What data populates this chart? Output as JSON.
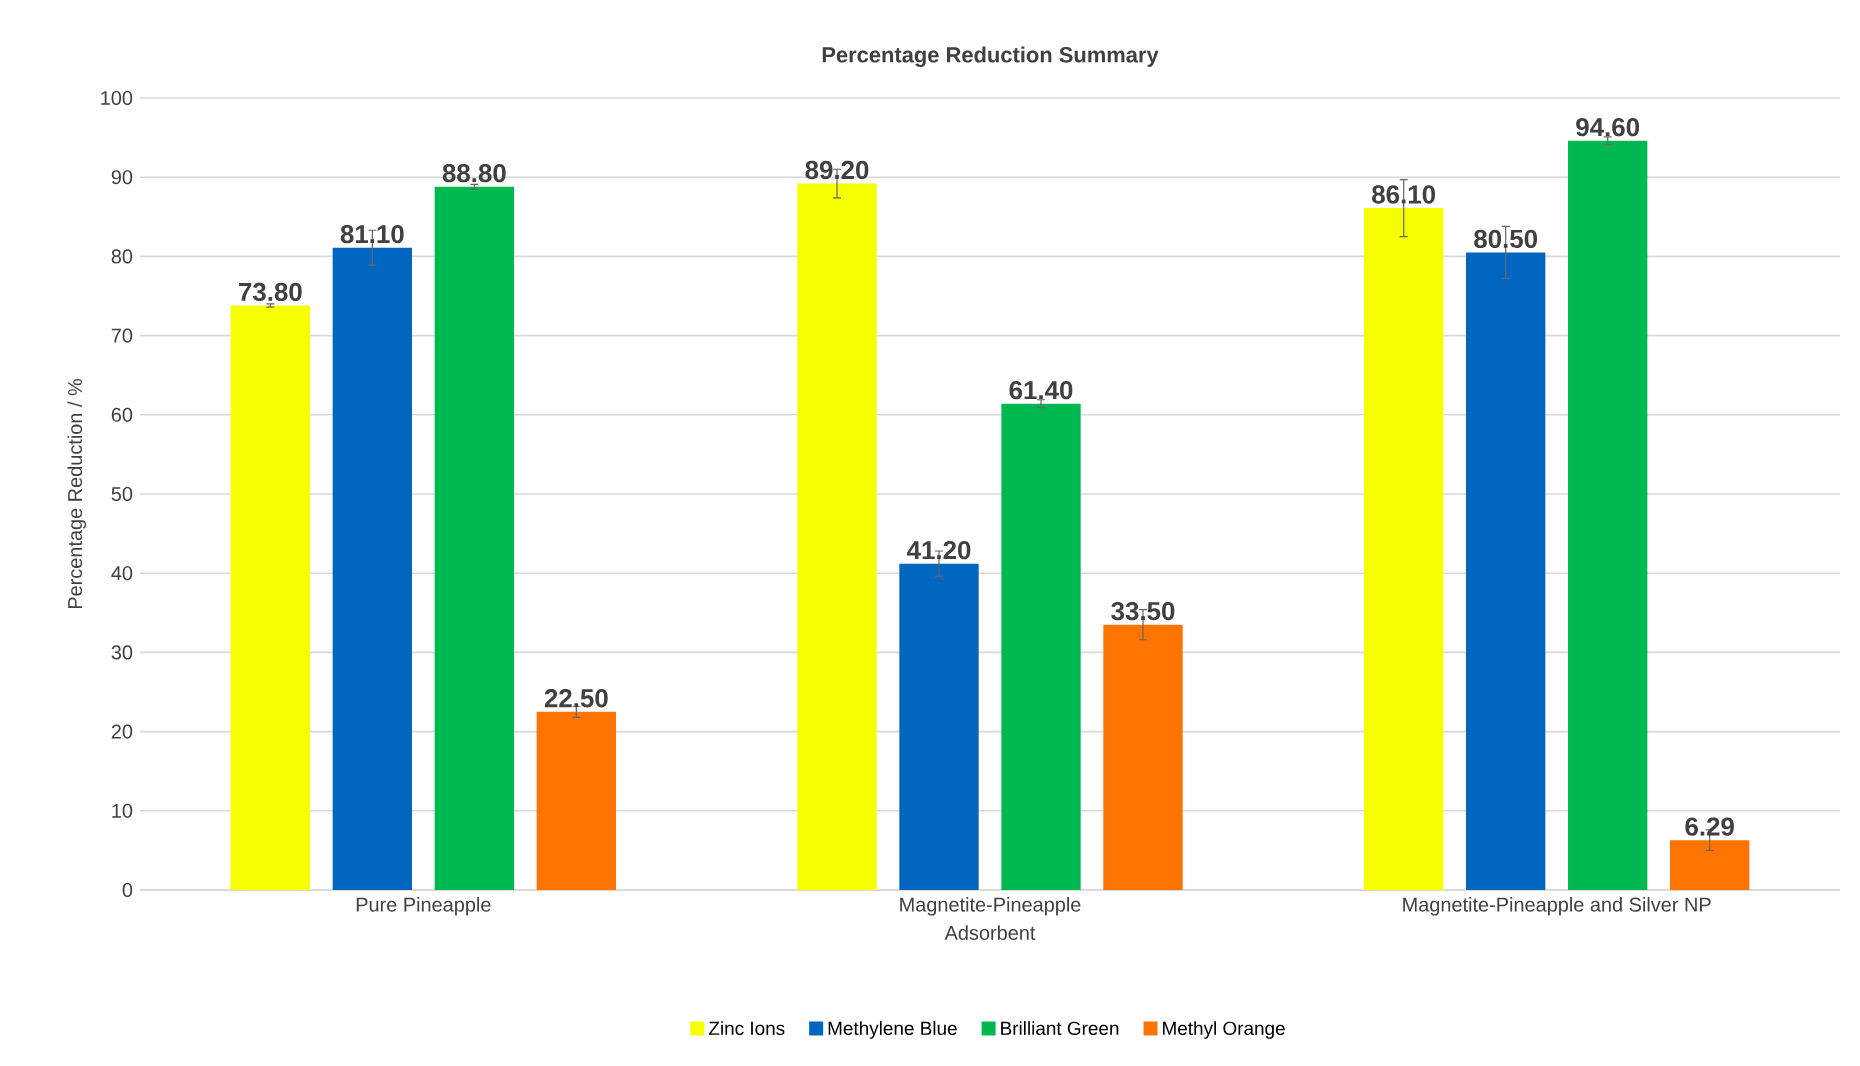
{
  "chart_data": {
    "type": "bar",
    "title": "Percentage Reduction Summary",
    "xlabel": "Adsorbent",
    "ylabel": "Percentage Reduction / %",
    "categories": [
      "Pure Pineapple",
      "Magnetite-Pineapple",
      "Magnetite-Pineapple and Silver NP"
    ],
    "series": [
      {
        "name": "Zinc Ions",
        "color": "#f5ff00",
        "values": [
          73.8,
          89.2,
          86.1
        ],
        "value_labels": [
          "73.80",
          "89.20",
          "86.10"
        ],
        "errors": [
          0.2,
          1.8,
          3.6
        ]
      },
      {
        "name": "Methylene Blue",
        "color": "#0066c0",
        "values": [
          81.1,
          41.2,
          80.5
        ],
        "value_labels": [
          "81.10",
          "41.20",
          "80.50"
        ],
        "errors": [
          2.2,
          1.6,
          3.3
        ]
      },
      {
        "name": "Brilliant Green",
        "color": "#00b850",
        "values": [
          88.8,
          61.4,
          94.6
        ],
        "value_labels": [
          "88.80",
          "61.40",
          "94.60"
        ],
        "errors": [
          0.3,
          0.5,
          0.5
        ]
      },
      {
        "name": "Methyl Orange",
        "color": "#ff7300",
        "values": [
          22.5,
          33.5,
          6.29
        ],
        "value_labels": [
          "22.50",
          "33.50",
          "6.29"
        ],
        "errors": [
          0.7,
          1.9,
          1.3
        ]
      }
    ],
    "ylim": [
      0,
      100
    ],
    "yticks": [
      0,
      10,
      20,
      30,
      40,
      50,
      60,
      70,
      80,
      90,
      100
    ],
    "grid": "y",
    "legend": "bottom"
  }
}
